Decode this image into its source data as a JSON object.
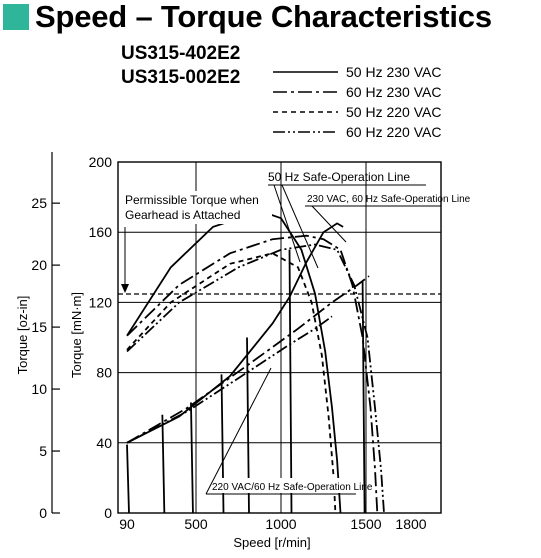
{
  "header": {
    "title": "Speed – Torque Characteristics",
    "model_1": "US315-402E2",
    "model_2": "US315-002E2",
    "accent_color": "#2eb59a"
  },
  "chart_data": {
    "type": "line",
    "xlabel": "Speed [r/min]",
    "ylabel_primary": "Torque [mN·m]",
    "ylabel_secondary": "Torque [oz-in]",
    "x_ticks": [
      90,
      500,
      1000,
      1500,
      1800
    ],
    "x_tick_labels": [
      "90",
      "500",
      "1000",
      "1500",
      "1800"
    ],
    "xlim": [
      90,
      1800
    ],
    "ylim": [
      0,
      200
    ],
    "y_ticks": [
      0,
      40,
      80,
      120,
      160,
      200
    ],
    "y_tick_labels": [
      "0",
      "40",
      "80",
      "120",
      "160",
      "200"
    ],
    "y2_ticks": [
      0,
      5,
      10,
      15,
      20,
      25
    ],
    "y2_tick_labels": [
      "0",
      "5",
      "10",
      "15",
      "20",
      "25"
    ],
    "y2_scale_oz_per_mNm": 0.1416,
    "grid": true,
    "legend_position": "top-right",
    "series": [
      {
        "name": "50 Hz 230 VAC",
        "dash": "solid",
        "points": [
          [
            90,
            101
          ],
          [
            350,
            140
          ],
          [
            600,
            163
          ],
          [
            880,
            172
          ],
          [
            1000,
            168
          ],
          [
            1120,
            150
          ],
          [
            1200,
            125
          ],
          [
            1260,
            92
          ],
          [
            1300,
            60
          ],
          [
            1330,
            30
          ],
          [
            1350,
            0
          ]
        ],
        "low": [
          [
            90,
            40
          ],
          [
            400,
            55
          ],
          [
            700,
            78
          ],
          [
            950,
            108
          ],
          [
            1050,
            123
          ],
          [
            1150,
            143
          ],
          [
            1250,
            160
          ],
          [
            1330,
            165
          ],
          [
            1365,
            163
          ]
        ]
      },
      {
        "name": "60 Hz 230 VAC",
        "dash": "dashdot",
        "points": [
          [
            90,
            101
          ],
          [
            400,
            130
          ],
          [
            700,
            148
          ],
          [
            950,
            156
          ],
          [
            1150,
            158
          ],
          [
            1250,
            156
          ],
          [
            1350,
            150
          ],
          [
            1420,
            130
          ],
          [
            1480,
            100
          ],
          [
            1530,
            60
          ],
          [
            1560,
            25
          ],
          [
            1575,
            0
          ]
        ],
        "low": [
          [
            90,
            40
          ],
          [
            450,
            60
          ],
          [
            800,
            84
          ],
          [
            1100,
            105
          ],
          [
            1300,
            120
          ],
          [
            1450,
            130
          ],
          [
            1520,
            135
          ]
        ]
      },
      {
        "name": "50 Hz 220 VAC",
        "dash": "dashed",
        "points": [
          [
            90,
            93
          ],
          [
            350,
            120
          ],
          [
            700,
            142
          ],
          [
            950,
            148
          ],
          [
            1100,
            140
          ],
          [
            1180,
            120
          ],
          [
            1240,
            90
          ],
          [
            1280,
            55
          ],
          [
            1310,
            20
          ],
          [
            1320,
            0
          ]
        ]
      },
      {
        "name": "60 Hz 220 VAC",
        "dash": "dashdotdot",
        "points": [
          [
            90,
            92
          ],
          [
            400,
            120
          ],
          [
            750,
            140
          ],
          [
            1000,
            150
          ],
          [
            1200,
            153
          ],
          [
            1330,
            150
          ],
          [
            1430,
            130
          ],
          [
            1510,
            100
          ],
          [
            1560,
            60
          ],
          [
            1600,
            25
          ],
          [
            1620,
            0
          ]
        ],
        "low": [
          [
            90,
            40
          ],
          [
            450,
            58
          ],
          [
            800,
            80
          ],
          [
            1050,
            96
          ],
          [
            1200,
            105
          ],
          [
            1300,
            112
          ]
        ]
      }
    ],
    "drop_lines": [
      [
        90,
        39
      ],
      [
        300,
        56
      ],
      [
        470,
        63
      ],
      [
        650,
        79
      ],
      [
        800,
        100
      ],
      [
        1050,
        150
      ],
      [
        1480,
        132
      ]
    ],
    "annotations": {
      "safe_50hz": "50 Hz Safe-Operation Line",
      "safe_230_60": "230 VAC, 60 Hz Safe-Operation Line",
      "safe_220_60": "220 VAC/60 Hz Safe-Operation Line",
      "permissible": "Permissible Torque when Gearhead is Attached",
      "permissible_line1": "Permissible Torque when",
      "permissible_line2": "Gearhead is Attached",
      "permissible_value": 125
    }
  }
}
